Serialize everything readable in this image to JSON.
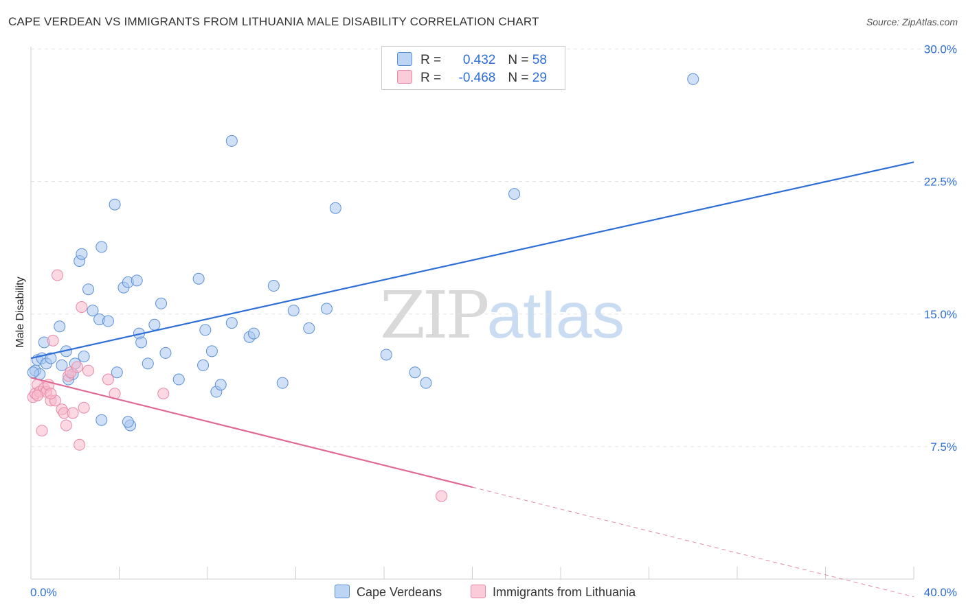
{
  "title": "CAPE VERDEAN VS IMMIGRANTS FROM LITHUANIA MALE DISABILITY CORRELATION CHART",
  "source": "Source: ZipAtlas.com",
  "watermark": {
    "zip": "ZIP",
    "atlas": "atlas"
  },
  "colors": {
    "blue_fill": "#a9c8f0",
    "blue_stroke": "#5b8fd6",
    "blue_line": "#2e6ed6",
    "pink_fill": "#f7b8cb",
    "pink_stroke": "#e889a8",
    "pink_line": "#e06a96",
    "accent_text": "#2e6ed6",
    "grid": "#e2e2e2"
  },
  "legend": {
    "rows": [
      {
        "r_label": "R = ",
        "r_value": "0.432",
        "n_label": "N = ",
        "n_value": "58"
      },
      {
        "r_label": "R = ",
        "r_value": "-0.468",
        "n_label": "N = ",
        "n_value": "29"
      }
    ]
  },
  "bottom_legend": [
    "Cape Verdeans",
    "Immigrants from Lithuania"
  ],
  "chart_data": {
    "type": "scatter",
    "title": "CAPE VERDEAN VS IMMIGRANTS FROM LITHUANIA MALE DISABILITY CORRELATION CHART",
    "xlabel": "",
    "ylabel": "Male Disability",
    "xlim": [
      0,
      40
    ],
    "ylim": [
      0,
      32
    ],
    "x_tick_labels": [
      "0.0%",
      "40.0%"
    ],
    "y_ticks": [
      7.5,
      15.0,
      22.5,
      30.0
    ],
    "y_tick_labels": [
      "7.5%",
      "15.0%",
      "22.5%",
      "30.0%"
    ],
    "grid": true,
    "legend_position": "top-center",
    "series": [
      {
        "name": "Cape Verdeans",
        "r": 0.432,
        "n": 58,
        "trend": {
          "x0": 0,
          "y0": 12.5,
          "x1": 40,
          "y1": 23.6
        },
        "points": [
          [
            0.2,
            11.8
          ],
          [
            0.4,
            11.6
          ],
          [
            0.3,
            12.4
          ],
          [
            0.5,
            12.5
          ],
          [
            0.6,
            13.4
          ],
          [
            0.7,
            12.2
          ],
          [
            0.9,
            12.5
          ],
          [
            1.3,
            14.3
          ],
          [
            1.4,
            12.1
          ],
          [
            1.6,
            12.9
          ],
          [
            1.7,
            11.3
          ],
          [
            1.9,
            11.6
          ],
          [
            2.0,
            12.2
          ],
          [
            2.4,
            12.6
          ],
          [
            2.2,
            18.0
          ],
          [
            2.3,
            18.4
          ],
          [
            2.6,
            16.4
          ],
          [
            2.8,
            15.2
          ],
          [
            3.1,
            14.7
          ],
          [
            3.2,
            18.8
          ],
          [
            3.5,
            14.6
          ],
          [
            3.8,
            21.2
          ],
          [
            3.9,
            11.7
          ],
          [
            4.2,
            16.5
          ],
          [
            4.5,
            8.7
          ],
          [
            4.4,
            8.9
          ],
          [
            4.4,
            16.8
          ],
          [
            4.8,
            16.9
          ],
          [
            4.9,
            13.9
          ],
          [
            5.0,
            13.4
          ],
          [
            5.3,
            12.2
          ],
          [
            5.6,
            14.4
          ],
          [
            5.9,
            15.6
          ],
          [
            6.1,
            12.8
          ],
          [
            6.7,
            11.3
          ],
          [
            7.6,
            17.0
          ],
          [
            7.8,
            12.1
          ],
          [
            7.9,
            14.1
          ],
          [
            8.2,
            12.9
          ],
          [
            8.4,
            10.6
          ],
          [
            8.6,
            11.0
          ],
          [
            9.1,
            24.8
          ],
          [
            9.1,
            14.5
          ],
          [
            9.9,
            13.7
          ],
          [
            10.1,
            13.9
          ],
          [
            11.0,
            16.6
          ],
          [
            11.4,
            11.1
          ],
          [
            11.9,
            15.2
          ],
          [
            12.6,
            14.2
          ],
          [
            13.4,
            15.3
          ],
          [
            13.8,
            21.0
          ],
          [
            16.1,
            12.7
          ],
          [
            17.4,
            11.7
          ],
          [
            17.9,
            11.1
          ],
          [
            21.9,
            21.8
          ],
          [
            30.0,
            28.3
          ],
          [
            3.2,
            9.0
          ],
          [
            0.1,
            11.7
          ]
        ]
      },
      {
        "name": "Immigrants from Lithuania",
        "r": -0.468,
        "n": 29,
        "trend": {
          "x0": 0,
          "y0": 11.4,
          "x1": 20,
          "y1": 5.2,
          "dash_x1": 40,
          "dash_y1": -1.0
        },
        "points": [
          [
            0.1,
            10.3
          ],
          [
            0.2,
            10.5
          ],
          [
            0.3,
            11.0
          ],
          [
            0.4,
            10.6
          ],
          [
            0.5,
            8.4
          ],
          [
            0.6,
            10.8
          ],
          [
            0.7,
            10.6
          ],
          [
            0.8,
            11.0
          ],
          [
            0.9,
            10.1
          ],
          [
            1.0,
            13.5
          ],
          [
            1.1,
            10.1
          ],
          [
            1.2,
            17.2
          ],
          [
            1.4,
            9.6
          ],
          [
            1.5,
            9.4
          ],
          [
            1.6,
            8.7
          ],
          [
            1.7,
            11.5
          ],
          [
            1.8,
            11.7
          ],
          [
            1.9,
            9.4
          ],
          [
            2.1,
            12.0
          ],
          [
            2.2,
            7.6
          ],
          [
            2.3,
            15.4
          ],
          [
            2.4,
            9.7
          ],
          [
            2.6,
            11.8
          ],
          [
            3.5,
            11.3
          ],
          [
            3.8,
            10.5
          ],
          [
            6.0,
            10.5
          ],
          [
            18.6,
            4.7
          ],
          [
            0.3,
            10.4
          ],
          [
            0.9,
            10.5
          ]
        ]
      }
    ]
  }
}
